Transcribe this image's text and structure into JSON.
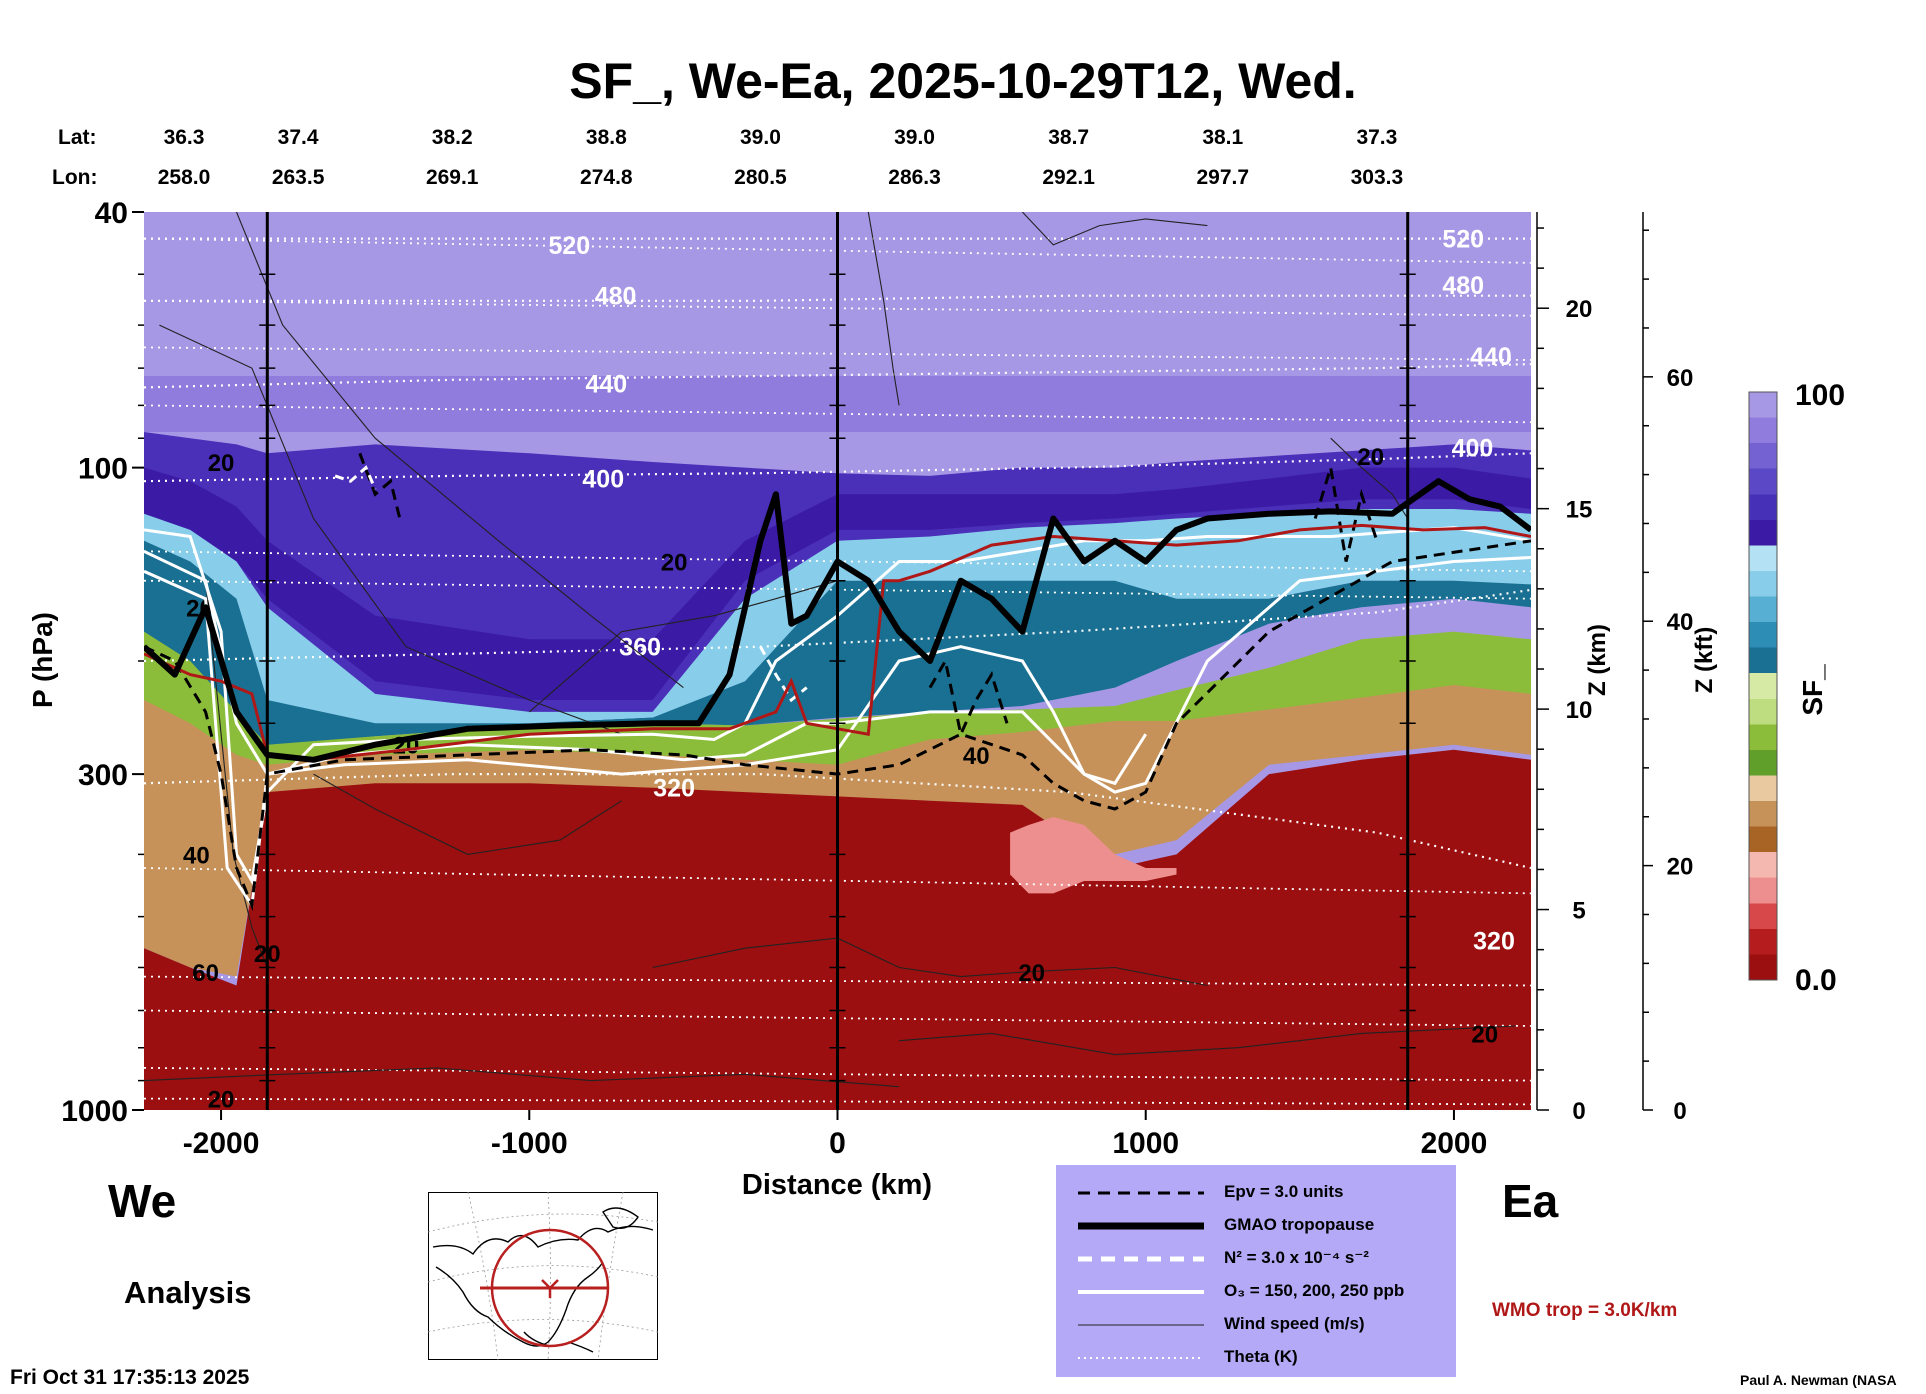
{
  "chart_data": {
    "type": "heatmap",
    "title": "SF_, We-Ea, 2025-10-29T12, Wed.",
    "xlabel": "Distance (km)",
    "ylabel": "P (hPa)",
    "right_axis_1_label": "Z (km)",
    "right_axis_2_label": "Z (kft)",
    "colorbar_label": "SF_",
    "colorbar_max_label": "100",
    "colorbar_min_label": "0.0",
    "colorbar_colors": [
      "#9b0f10",
      "#b41c1e",
      "#d6484a",
      "#ee8f8f",
      "#f5b8b0",
      "#a86424",
      "#c6925a",
      "#e9c9a0",
      "#5f9f2a",
      "#8cbd3a",
      "#bedd80",
      "#d6eaa6",
      "#1a7092",
      "#2e8db5",
      "#57afd3",
      "#88cdea",
      "#b4e1f3",
      "#3b1aa6",
      "#4730b8",
      "#5a48c6",
      "#7462d2",
      "#8f7cdc",
      "#a798e6"
    ],
    "xlim": [
      -2250,
      2250
    ],
    "ylim": [
      1000,
      40
    ],
    "yscale": "log",
    "x_ticks": [
      -2000,
      -1000,
      0,
      1000,
      2000
    ],
    "x_tick_labels": [
      "-2000",
      "-1000",
      "0",
      "1000",
      "2000"
    ],
    "y_ticks": [
      40,
      100,
      300,
      1000
    ],
    "y_tick_labels": [
      "40",
      "100",
      "300",
      "1000"
    ],
    "z_km_ticks": [
      0,
      5,
      10,
      15,
      20
    ],
    "z_kft_ticks": [
      0,
      20,
      40,
      60
    ],
    "vertical_reference_lines_km": [
      -1850,
      0,
      1850
    ],
    "top_axis": {
      "lat_label": "Lat:",
      "lon_label": "Lon:",
      "lat": [
        "36.3",
        "37.4",
        "38.2",
        "38.8",
        "39.0",
        "39.0",
        "38.7",
        "38.1",
        "37.3"
      ],
      "lon": [
        "258.0",
        "263.5",
        "269.1",
        "274.8",
        "280.5",
        "286.3",
        "292.1",
        "297.7",
        "303.3"
      ],
      "distance_km": [
        -2250,
        -1750,
        -1250,
        -750,
        -250,
        250,
        750,
        1250,
        1750
      ]
    },
    "theta_contours": [
      {
        "label": "520",
        "p": [
          44,
          44,
          44,
          44,
          44,
          44
        ]
      },
      {
        "label": "480",
        "p": [
          55,
          55,
          55,
          54,
          54,
          54
        ]
      },
      {
        "label": "440",
        "p": [
          75,
          73,
          72,
          71,
          70,
          69
        ]
      },
      {
        "label": "400",
        "p": [
          105,
          103,
          102,
          100,
          97,
          95
        ]
      },
      {
        "label": "360",
        "p": [
          200,
          195,
          190,
          180,
          168,
          155
        ]
      },
      {
        "label": "320",
        "p": [
          310,
          300,
          300,
          320,
          370,
          420
        ]
      }
    ],
    "theta_x_km": [
      -2250,
      -1250,
      -250,
      750,
      1750,
      2250
    ],
    "gmao_tropopause": {
      "x": [
        -2250,
        -2150,
        -2050,
        -1950,
        -1850,
        -1700,
        -1500,
        -1200,
        -900,
        -600,
        -450,
        -350,
        -250,
        -200,
        -150,
        -100,
        0,
        100,
        200,
        300,
        400,
        500,
        600,
        700,
        800,
        900,
        1000,
        1100,
        1200,
        1400,
        1600,
        1800,
        1950,
        2050,
        2150,
        2250
      ],
      "p": [
        190,
        210,
        165,
        240,
        280,
        285,
        270,
        255,
        252,
        250,
        250,
        210,
        130,
        110,
        175,
        170,
        140,
        150,
        180,
        200,
        150,
        160,
        180,
        120,
        140,
        130,
        140,
        125,
        120,
        118,
        117,
        118,
        105,
        112,
        115,
        125
      ]
    },
    "wmo_tropopause": {
      "x": [
        -2250,
        -2100,
        -2000,
        -1900,
        -1850,
        -1700,
        -1400,
        -1000,
        -600,
        -350,
        -200,
        -150,
        -100,
        0,
        100,
        150,
        200,
        300,
        500,
        700,
        900,
        1100,
        1300,
        1500,
        1700,
        1900,
        2100,
        2250
      ],
      "p": [
        195,
        210,
        215,
        225,
        280,
        285,
        275,
        260,
        255,
        255,
        240,
        215,
        250,
        255,
        260,
        150,
        150,
        145,
        132,
        128,
        130,
        132,
        130,
        125,
        123,
        125,
        124,
        128
      ]
    },
    "wind_speed_labels": [
      "20",
      "20",
      "20",
      "20",
      "40",
      "40",
      "60",
      "20",
      "20",
      "20",
      "20",
      "20"
    ],
    "legend": [
      {
        "label": "Epv = 3.0 units",
        "style": "black-dash"
      },
      {
        "label": "GMAO tropopause",
        "style": "black-thick"
      },
      {
        "label": "N² = 3.0 x 10⁻⁴ s⁻²",
        "style": "white-dash"
      },
      {
        "label": "O₃ = 150, 200, 250 ppb",
        "style": "white-solid"
      },
      {
        "label": "Wind speed (m/s)",
        "style": "thin-black"
      },
      {
        "label": "Theta (K)",
        "style": "white-dotted"
      }
    ]
  },
  "labels": {
    "west": "We",
    "east": "Ea",
    "analysis": "Analysis",
    "timestamp": "Fri Oct 31 17:35:13 2025",
    "credit": "Paul A. Newman (NASA",
    "wmo": "WMO trop = 3.0K/km"
  },
  "colors": {
    "legend_bg": "#b3a9f6",
    "wmo_color": "#b01818",
    "map_line": "#b82020"
  }
}
